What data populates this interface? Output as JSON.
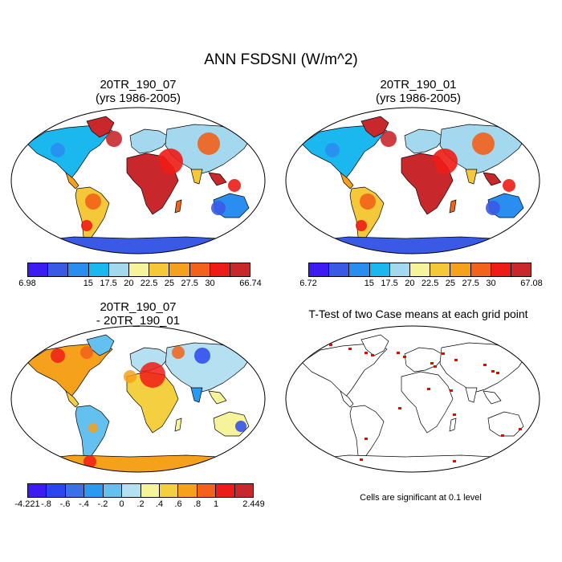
{
  "title": "ANN FSDSNI (W/m^2)",
  "panels": [
    {
      "title_line1": "20TR_190_07",
      "title_line2": "(yrs 1986-2005)",
      "colorbar": {
        "colors": [
          "#3c1cf0",
          "#3a5ae6",
          "#2a8ef0",
          "#1ab8ee",
          "#a4d8ee",
          "#f6f49a",
          "#f4c838",
          "#f6a11c",
          "#f2621a",
          "#ee1c16",
          "#c8282c"
        ],
        "labels": [
          "6.98",
          "15",
          "17.5",
          "20",
          "22.5",
          "25",
          "27.5",
          "30",
          "66.74"
        ]
      }
    },
    {
      "title_line1": "20TR_190_01",
      "title_line2": "(yrs 1986-2005)",
      "colorbar": {
        "colors": [
          "#3c1cf0",
          "#3a5ae6",
          "#2a8ef0",
          "#1ab8ee",
          "#a4d8ee",
          "#f6f49a",
          "#f4c838",
          "#f6a11c",
          "#f2621a",
          "#ee1c16",
          "#c8282c"
        ],
        "labels": [
          "6.72",
          "15",
          "17.5",
          "20",
          "22.5",
          "25",
          "27.5",
          "30",
          "67.08"
        ]
      }
    },
    {
      "title_line1": "20TR_190_07",
      "title_line2": "- 20TR_190_01",
      "colorbar": {
        "colors": [
          "#3c1cf0",
          "#2a46f0",
          "#3a72e6",
          "#2a9af0",
          "#64c0ee",
          "#b4e0f2",
          "#f6f49a",
          "#f4d040",
          "#f6a11c",
          "#f2621a",
          "#ee1c16",
          "#c8282c"
        ],
        "labels": [
          "-4.221",
          "-.8",
          "-.6",
          "-.4",
          "-.2",
          "0",
          ".2",
          ".4",
          ".6",
          ".8",
          "1",
          "2.449"
        ]
      }
    },
    {
      "title_line1": "T-Test of two Case means at each grid point",
      "note": "Cells are significant at 0.1 level"
    }
  ]
}
